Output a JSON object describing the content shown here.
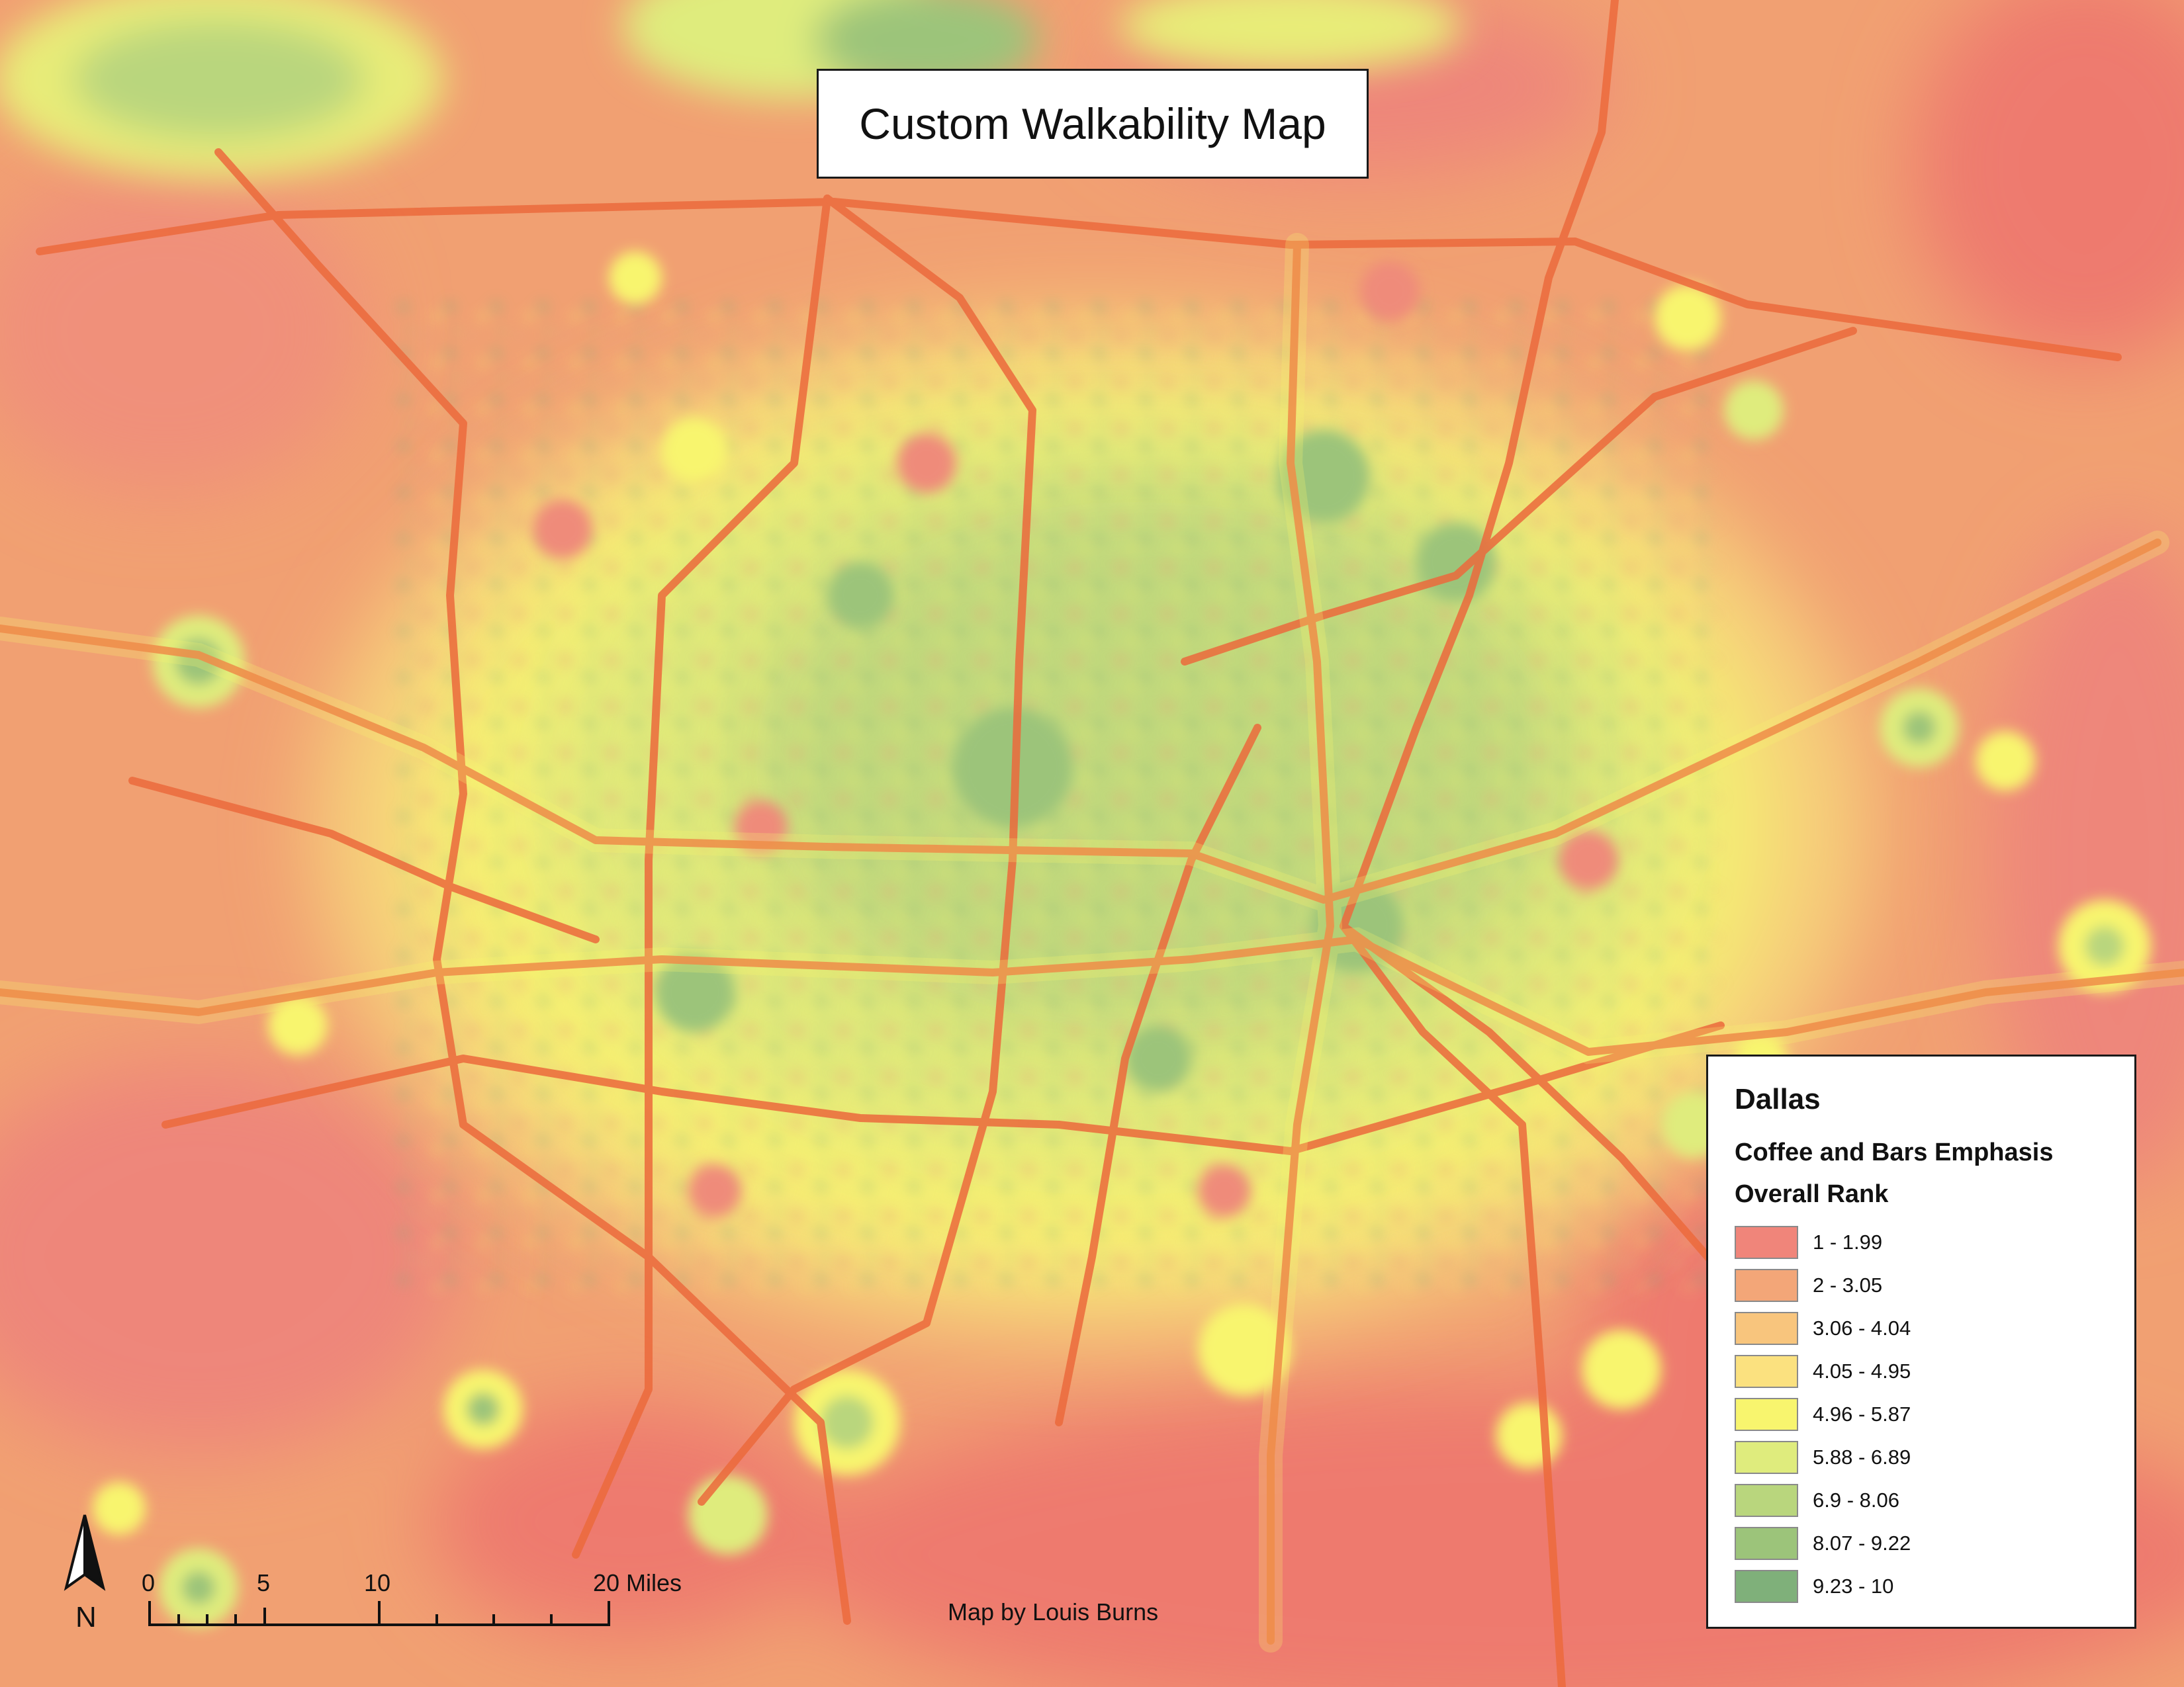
{
  "map": {
    "title": "Custom Walkability Map",
    "credit": "Map by Louis Burns",
    "north_label": "N",
    "scale_labels": [
      "0",
      "5",
      "10",
      "20 Miles"
    ]
  },
  "legend": {
    "city": "Dallas",
    "subtitle": "Coffee and Bars Emphasis",
    "field": "Overall Rank",
    "classes": [
      {
        "label": "1 - 1.99",
        "color": "#f0857a"
      },
      {
        "label": "2 - 3.05",
        "color": "#f3a678"
      },
      {
        "label": "3.06 - 4.04",
        "color": "#f8c57d"
      },
      {
        "label": "4.05 - 4.95",
        "color": "#fbe17f"
      },
      {
        "label": "4.96 - 5.87",
        "color": "#f8f56e"
      },
      {
        "label": "5.88 - 6.89",
        "color": "#dfec7d"
      },
      {
        "label": "6.9 - 8.06",
        "color": "#b9d67d"
      },
      {
        "label": "8.07 - 9.22",
        "color": "#9cc47a"
      },
      {
        "label": "9.23 - 10",
        "color": "#7fb07a"
      }
    ]
  },
  "colors": {
    "highway": "#ec6a3c",
    "background": "#f1a072",
    "urban_core": "#a8ca78"
  }
}
